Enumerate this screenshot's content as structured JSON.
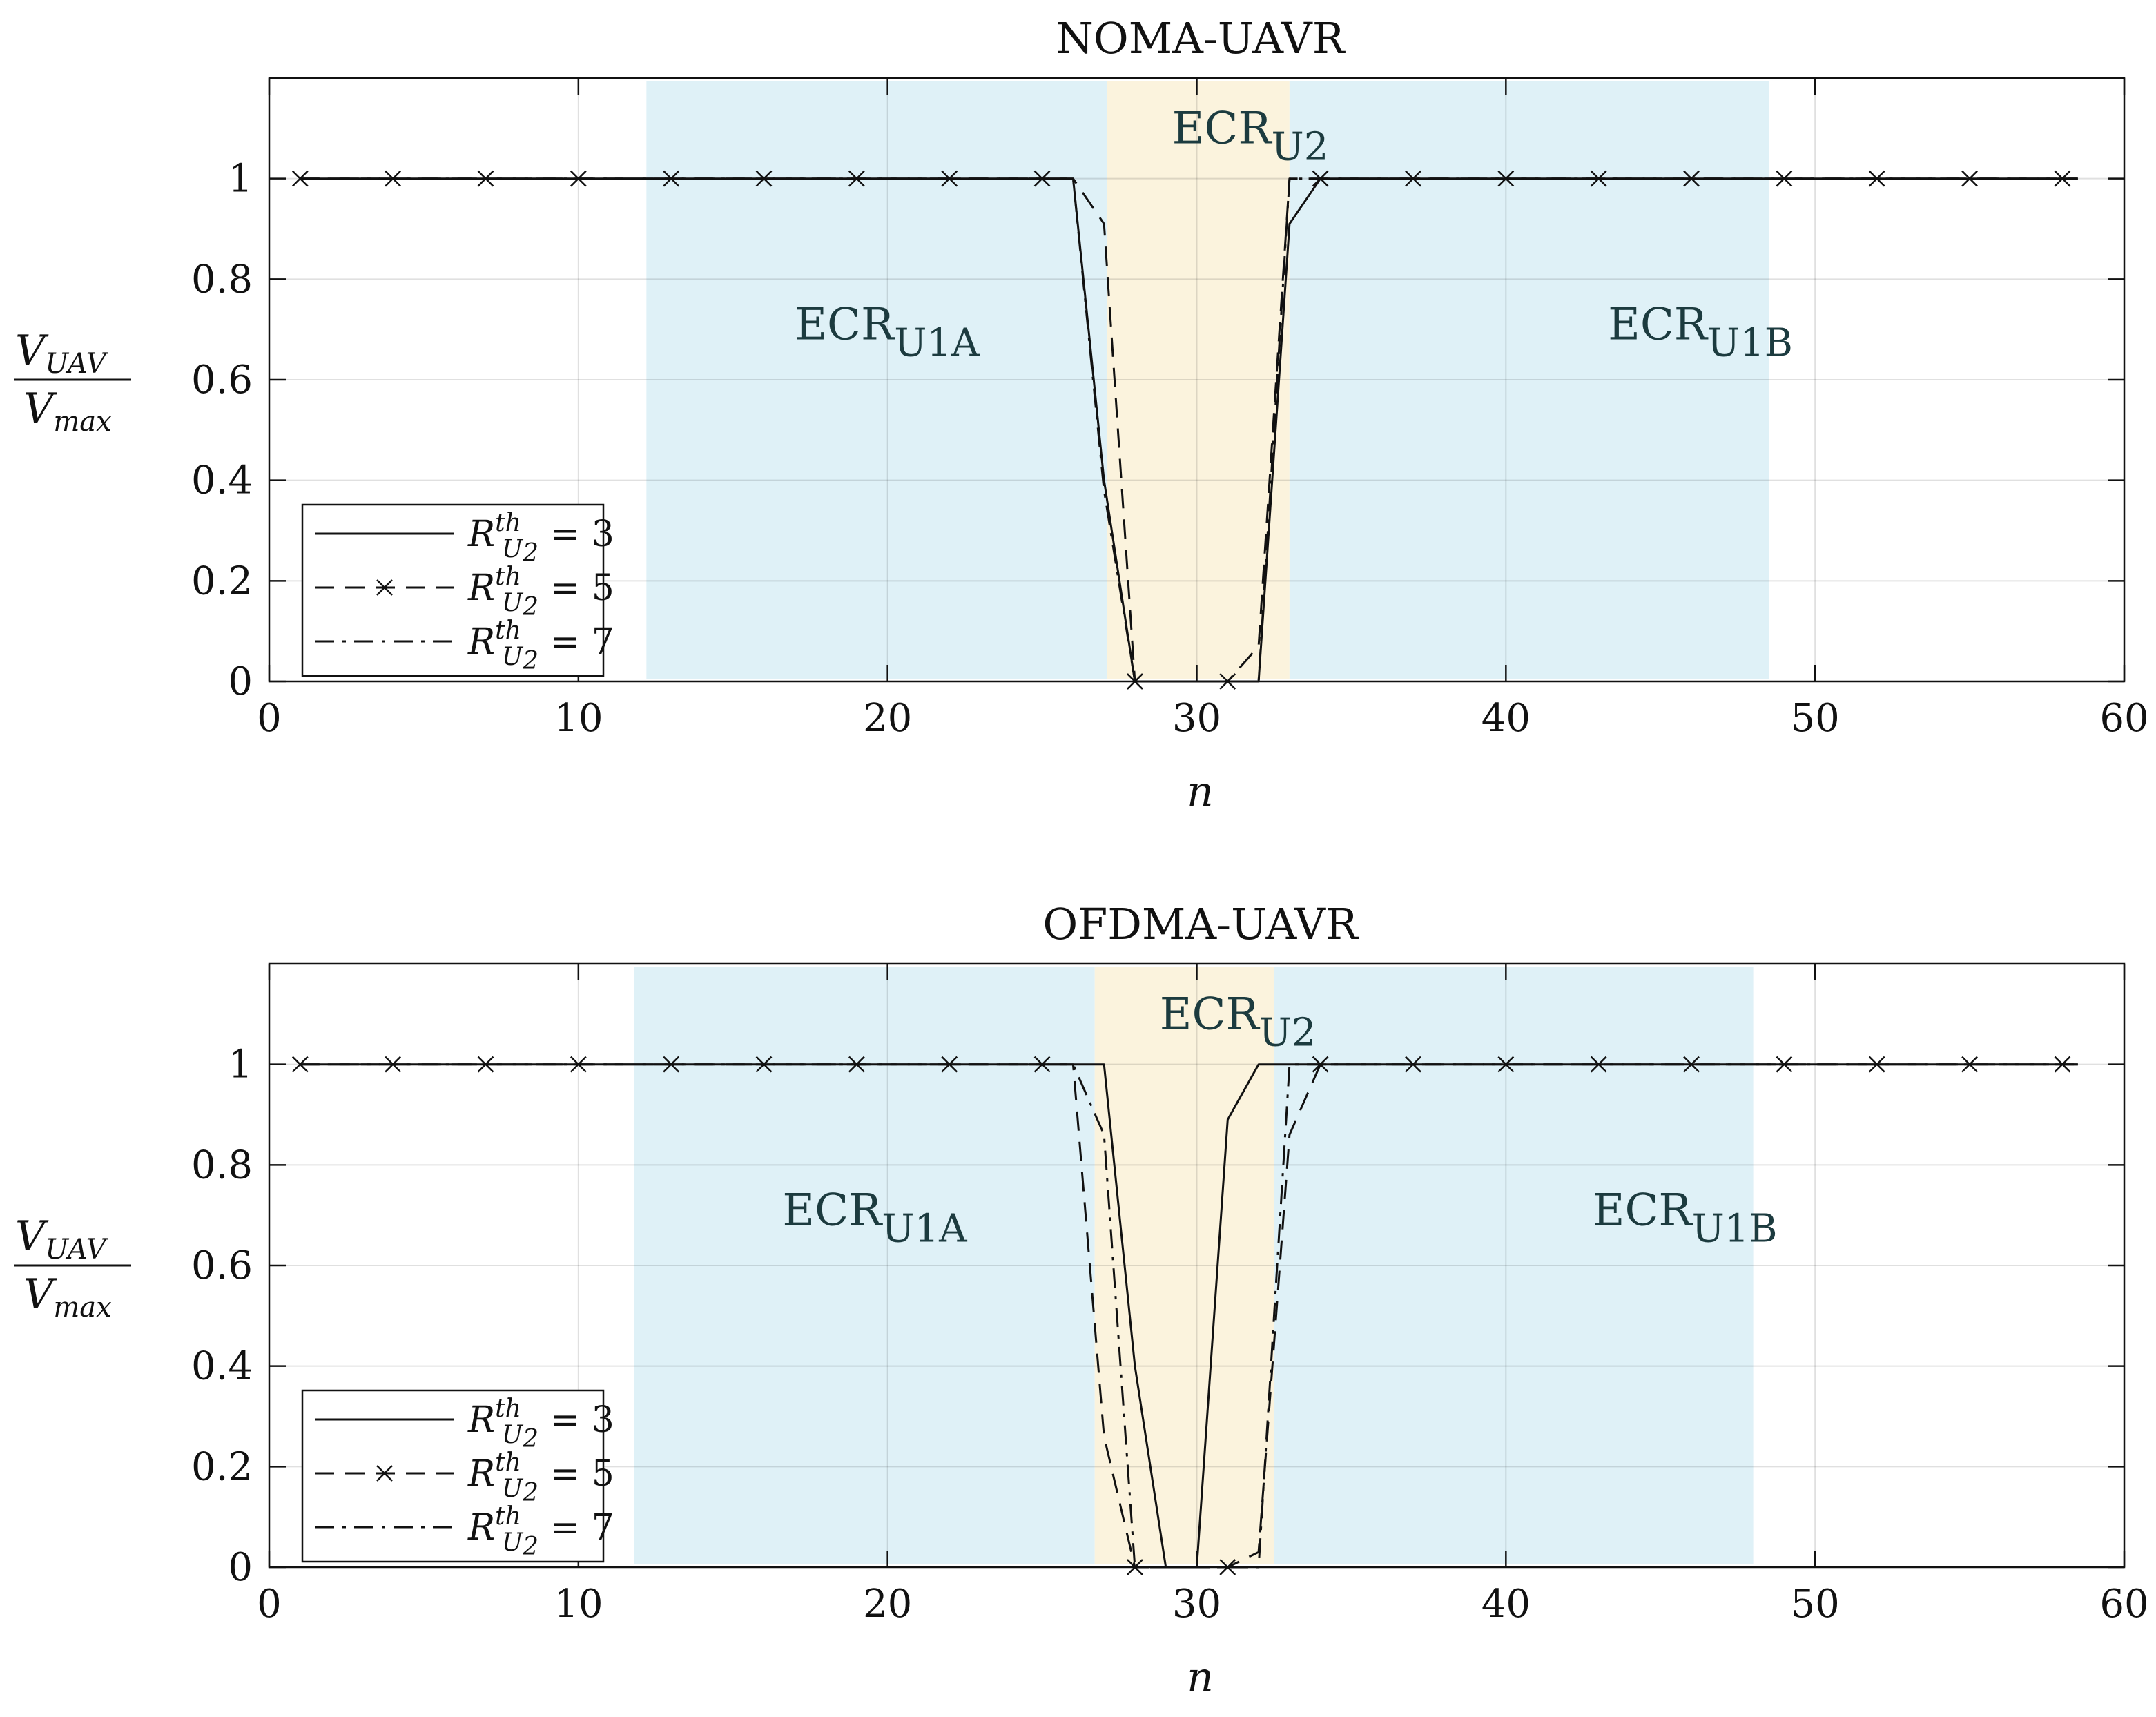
{
  "chart_data": [
    {
      "type": "line",
      "title": "NOMA-UAVR",
      "xlabel": "n",
      "ylabel": {
        "num_main": "V",
        "num_sub": "UAV",
        "den_main": "V",
        "den_sub": "max"
      },
      "xlim": [
        0,
        60
      ],
      "ylim": [
        0,
        1.2
      ],
      "xticks": [
        "0",
        "10",
        "20",
        "30",
        "40",
        "50",
        "60"
      ],
      "yticks": [
        "0",
        "0.2",
        "0.4",
        "0.6",
        "0.8",
        "1"
      ],
      "grid": true,
      "legend_position": "bottom-left",
      "regions": [
        {
          "label": "ECR",
          "sub": "U1A",
          "x0": 12.2,
          "x1": 27.1,
          "color": "#dff1f7",
          "label_x": 17,
          "label_y": 0.68
        },
        {
          "label": "ECR",
          "sub": "U2",
          "x0": 27.1,
          "x1": 33.0,
          "color": "#fbf3dd",
          "label_x": 29.2,
          "label_y": 1.07
        },
        {
          "label": "ECR",
          "sub": "U1B",
          "x0": 33.0,
          "x1": 48.5,
          "color": "#dff1f7",
          "label_x": 43.3,
          "label_y": 0.68
        }
      ],
      "series": [
        {
          "name": "R_U2^th = 3",
          "legend_main": "R",
          "legend_sup": "th",
          "legend_sub": "U",
          "legend_subsub": "2",
          "legend_value": "= 3",
          "style": "solid",
          "marker": "none",
          "x": [
            1,
            26,
            27,
            28,
            29,
            30,
            31,
            32,
            33,
            34,
            58.5
          ],
          "y": [
            1,
            1,
            0.4,
            0,
            0,
            0,
            0,
            0,
            0.91,
            1,
            1
          ]
        },
        {
          "name": "R_U2^th = 5",
          "legend_main": "R",
          "legend_sup": "th",
          "legend_sub": "U",
          "legend_subsub": "2",
          "legend_value": "= 5",
          "style": "dashed",
          "marker": "x",
          "marker_x": [
            1,
            4,
            7,
            10,
            13,
            16,
            19,
            22,
            25,
            28,
            31,
            34,
            37,
            40,
            43,
            46,
            49,
            52,
            55,
            58
          ],
          "x": [
            1,
            26,
            27,
            28,
            29,
            30,
            31,
            32,
            33,
            58.5
          ],
          "y": [
            1,
            1,
            0.91,
            0,
            0,
            0,
            0,
            0.07,
            1,
            1
          ]
        },
        {
          "name": "R_U2^th = 7",
          "legend_main": "R",
          "legend_sup": "th",
          "legend_sub": "U",
          "legend_subsub": "2",
          "legend_value": "= 7",
          "style": "dashdot",
          "marker": "none",
          "x": [
            1,
            26,
            27,
            28,
            29,
            30,
            31,
            32,
            33,
            58.5
          ],
          "y": [
            1,
            1,
            0.38,
            0,
            0,
            0,
            0,
            0,
            1,
            1
          ]
        }
      ]
    },
    {
      "type": "line",
      "title": "OFDMA-UAVR",
      "xlabel": "n",
      "ylabel": {
        "num_main": "V",
        "num_sub": "UAV",
        "den_main": "V",
        "den_sub": "max"
      },
      "xlim": [
        0,
        60
      ],
      "ylim": [
        0,
        1.2
      ],
      "xticks": [
        "0",
        "10",
        "20",
        "30",
        "40",
        "50",
        "60"
      ],
      "yticks": [
        "0",
        "0.2",
        "0.4",
        "0.6",
        "0.8",
        "1"
      ],
      "grid": true,
      "legend_position": "bottom-left",
      "regions": [
        {
          "label": "ECR",
          "sub": "U1A",
          "x0": 11.8,
          "x1": 26.7,
          "color": "#dff1f7",
          "label_x": 16.6,
          "label_y": 0.68
        },
        {
          "label": "ECR",
          "sub": "U2",
          "x0": 26.7,
          "x1": 32.5,
          "color": "#fbf3dd",
          "label_x": 28.8,
          "label_y": 1.07
        },
        {
          "label": "ECR",
          "sub": "U1B",
          "x0": 32.5,
          "x1": 48.0,
          "color": "#dff1f7",
          "label_x": 42.8,
          "label_y": 0.68
        }
      ],
      "series": [
        {
          "name": "R_U2^th = 3",
          "legend_main": "R",
          "legend_sup": "th",
          "legend_sub": "U",
          "legend_subsub": "2",
          "legend_value": "= 3",
          "style": "solid",
          "marker": "none",
          "x": [
            1,
            27,
            28,
            29,
            30,
            31,
            32,
            58.5
          ],
          "y": [
            1,
            1,
            0.4,
            0,
            0,
            0.89,
            1,
            1
          ]
        },
        {
          "name": "R_U2^th = 5",
          "legend_main": "R",
          "legend_sup": "th",
          "legend_sub": "U",
          "legend_subsub": "2",
          "legend_value": "= 5",
          "style": "dashed",
          "marker": "x",
          "marker_x": [
            1,
            4,
            7,
            10,
            13,
            16,
            19,
            22,
            25,
            28,
            31,
            34,
            37,
            40,
            43,
            46,
            49,
            52,
            55,
            58
          ],
          "x": [
            1,
            26,
            27,
            28,
            29,
            30,
            31,
            32,
            33,
            34,
            58.5
          ],
          "y": [
            1,
            1,
            0.26,
            0,
            0,
            0,
            0,
            0.03,
            0.86,
            1,
            1
          ]
        },
        {
          "name": "R_U2^th = 7",
          "legend_main": "R",
          "legend_sup": "th",
          "legend_sub": "U",
          "legend_subsub": "2",
          "legend_value": "= 7",
          "style": "dashdot",
          "marker": "none",
          "x": [
            1,
            26,
            27,
            28,
            29,
            30,
            31,
            32,
            33,
            58.5
          ],
          "y": [
            1,
            1,
            0.86,
            0,
            0,
            0,
            0,
            0,
            1,
            1
          ]
        }
      ]
    }
  ]
}
